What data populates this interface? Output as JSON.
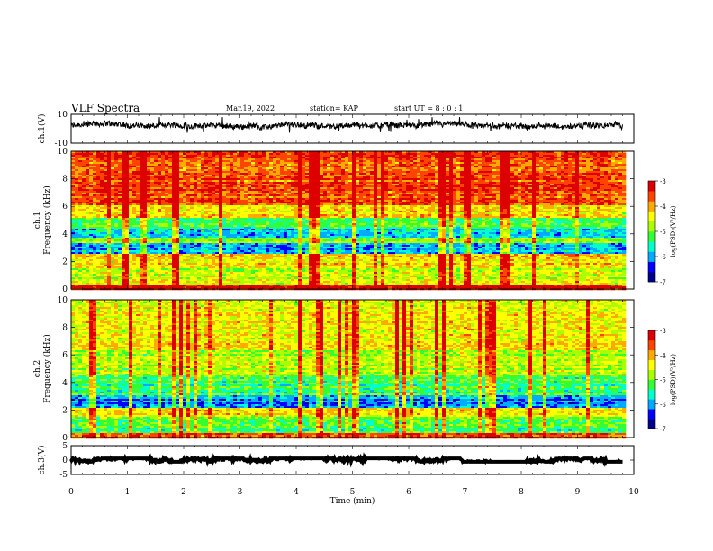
{
  "header": {
    "title": "VLF Spectra",
    "date": "Mar.19, 2022",
    "station": "station= KAP",
    "start": "start  UT =  8 : 0  : 1"
  },
  "colorbar": {
    "label": "log(PSD)(V²/Hz)",
    "ticks": [
      "-3",
      "-4",
      "-5",
      "-6",
      "-7"
    ],
    "colors": [
      "#00008f",
      "#0000ff",
      "#00aaff",
      "#00ffcc",
      "#33ff33",
      "#aaff00",
      "#ffff00",
      "#ffaa00",
      "#ff4400",
      "#dd0000"
    ]
  },
  "chart_data": [
    {
      "type": "line",
      "panel": "ch1-waveform",
      "ylabel": "ch.1(V)",
      "ylim": [
        -10,
        10
      ],
      "yticks": [
        "10",
        "-10"
      ],
      "xlim": [
        0,
        10
      ],
      "trace_range": [
        0,
        9.8
      ],
      "approx_mean": 2,
      "approx_amplitude": [
        -3,
        8
      ]
    },
    {
      "type": "heatmap",
      "panel": "ch1-spectrogram",
      "ylabel": "ch.1\nFrequency (kHz)",
      "ylim": [
        0,
        10
      ],
      "yticks": [
        "0",
        "2",
        "4",
        "6",
        "8",
        "10"
      ],
      "xlim": [
        0,
        10
      ],
      "color_range": [
        -7,
        -3
      ],
      "bands": [
        {
          "from": 0,
          "to": 0.4,
          "level": -3.2
        },
        {
          "from": 0.4,
          "to": 1.6,
          "level": -4.6
        },
        {
          "from": 1.6,
          "to": 2.6,
          "level": -4.3
        },
        {
          "from": 2.6,
          "to": 3.4,
          "level": -5.9
        },
        {
          "from": 3.4,
          "to": 3.8,
          "level": -4.8
        },
        {
          "from": 3.8,
          "to": 4.4,
          "level": -5.7
        },
        {
          "from": 4.4,
          "to": 5.2,
          "level": -5.2
        },
        {
          "from": 5.2,
          "to": 6.2,
          "level": -4.3
        },
        {
          "from": 6.2,
          "to": 10,
          "level": -3.6
        }
      ]
    },
    {
      "type": "heatmap",
      "panel": "ch2-spectrogram",
      "ylabel": "ch.2\nFrequency (kHz)",
      "ylim": [
        0,
        10
      ],
      "yticks": [
        "0",
        "2",
        "4",
        "6",
        "8",
        "10"
      ],
      "xlim": [
        0,
        10
      ],
      "color_range": [
        -7,
        -3
      ],
      "bands": [
        {
          "from": 0,
          "to": 0.4,
          "level": -3.6
        },
        {
          "from": 0.4,
          "to": 1.6,
          "level": -5.2
        },
        {
          "from": 1.6,
          "to": 2.2,
          "level": -4.4
        },
        {
          "from": 2.2,
          "to": 3.2,
          "level": -6.0
        },
        {
          "from": 3.2,
          "to": 4.6,
          "level": -5.3
        },
        {
          "from": 4.6,
          "to": 6.4,
          "level": -4.7
        },
        {
          "from": 6.4,
          "to": 10,
          "level": -4.4
        }
      ]
    },
    {
      "type": "line",
      "panel": "ch3-waveform",
      "ylabel": "ch.3(V)",
      "ylim": [
        -5,
        5
      ],
      "yticks": [
        "5",
        "0",
        "-5"
      ],
      "xlim": [
        0,
        10
      ],
      "xticks": [
        "0",
        "1",
        "2",
        "3",
        "4",
        "5",
        "6",
        "7",
        "8",
        "9",
        "10"
      ],
      "xlabel": "Time (min)",
      "trace_range": [
        0,
        9.8
      ],
      "approx_mean": 0,
      "approx_amplitude": [
        -0.6,
        0.6
      ]
    }
  ]
}
